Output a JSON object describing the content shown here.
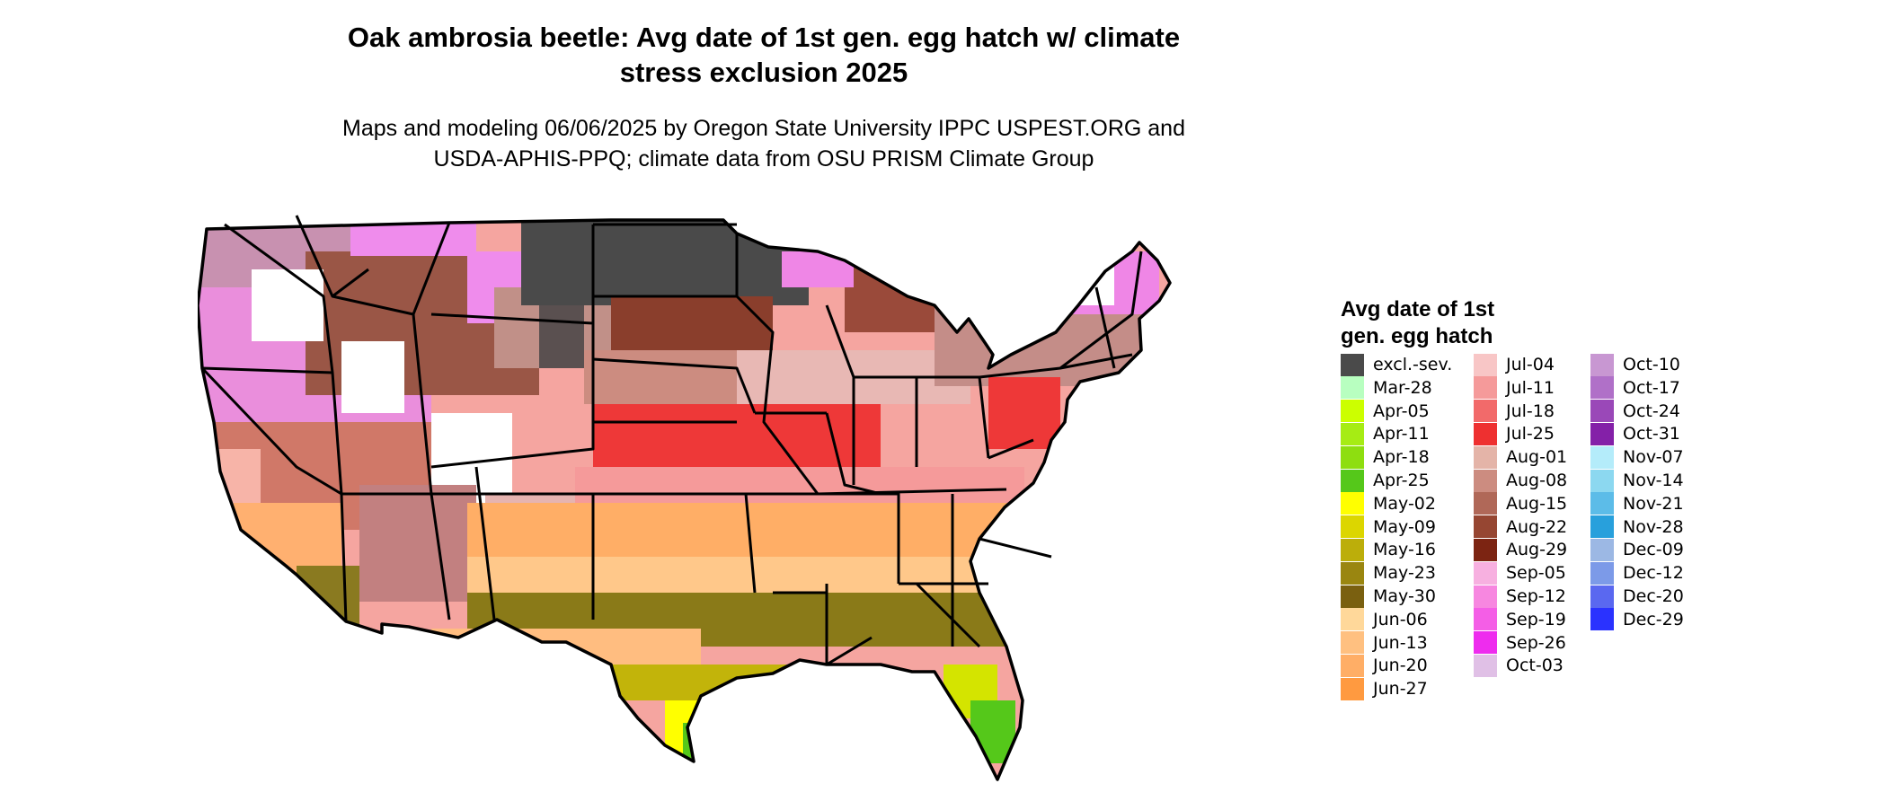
{
  "title_line1": "Oak ambrosia beetle: Avg date of 1st gen. egg hatch w/ climate",
  "title_line2": "stress exclusion 2025",
  "subtitle_line1": "Maps and modeling 06/06/2025 by Oregon State University IPPC USPEST.ORG and",
  "subtitle_line2": "USDA-APHIS-PPQ; climate data from OSU PRISM Climate Group",
  "legend": {
    "title_line1": "Avg date of 1st",
    "title_line2": "gen. egg hatch",
    "items": [
      {
        "label": "excl.-sev.",
        "color": "#4a4a4a"
      },
      {
        "label": "Mar-28",
        "color": "#b8ffc0"
      },
      {
        "label": "Apr-05",
        "color": "#ccff00"
      },
      {
        "label": "Apr-11",
        "color": "#a6ec14"
      },
      {
        "label": "Apr-18",
        "color": "#8ede10"
      },
      {
        "label": "Apr-25",
        "color": "#55c81a"
      },
      {
        "label": "May-02",
        "color": "#ffff00"
      },
      {
        "label": "May-09",
        "color": "#dcd600"
      },
      {
        "label": "May-16",
        "color": "#bcae0a"
      },
      {
        "label": "May-23",
        "color": "#9a8610"
      },
      {
        "label": "May-30",
        "color": "#7a6010"
      },
      {
        "label": "Jun-06",
        "color": "#ffd89a"
      },
      {
        "label": "Jun-13",
        "color": "#ffc080"
      },
      {
        "label": "Jun-20",
        "color": "#ffae66"
      },
      {
        "label": "Jun-27",
        "color": "#ff9a40"
      },
      {
        "label": "Jul-04",
        "color": "#f8c6c6"
      },
      {
        "label": "Jul-11",
        "color": "#f59a9a"
      },
      {
        "label": "Jul-18",
        "color": "#f26a6a"
      },
      {
        "label": "Jul-25",
        "color": "#ee3030"
      },
      {
        "label": "Aug-01",
        "color": "#e4b4a8"
      },
      {
        "label": "Aug-08",
        "color": "#cc8c80"
      },
      {
        "label": "Aug-15",
        "color": "#b06858"
      },
      {
        "label": "Aug-22",
        "color": "#964632"
      },
      {
        "label": "Aug-29",
        "color": "#7c2412"
      },
      {
        "label": "Sep-05",
        "color": "#f7b0e0"
      },
      {
        "label": "Sep-12",
        "color": "#f787e0"
      },
      {
        "label": "Sep-19",
        "color": "#f45ee6"
      },
      {
        "label": "Sep-26",
        "color": "#ee2cee"
      },
      {
        "label": "Oct-03",
        "color": "#e0c0e6"
      },
      {
        "label": "Oct-10",
        "color": "#c897d2"
      },
      {
        "label": "Oct-17",
        "color": "#b070c8"
      },
      {
        "label": "Oct-24",
        "color": "#9a48b8"
      },
      {
        "label": "Oct-31",
        "color": "#8420a8"
      },
      {
        "label": "Nov-07",
        "color": "#b4ecfa"
      },
      {
        "label": "Nov-14",
        "color": "#8cd8f0"
      },
      {
        "label": "Nov-21",
        "color": "#5cbce8"
      },
      {
        "label": "Nov-28",
        "color": "#28a0dc"
      },
      {
        "label": "Dec-09",
        "color": "#9cb8e4"
      },
      {
        "label": "Dec-12",
        "color": "#7c9ae8"
      },
      {
        "label": "Dec-20",
        "color": "#5a68f0"
      },
      {
        "label": "Dec-29",
        "color": "#2a32ff"
      }
    ]
  }
}
